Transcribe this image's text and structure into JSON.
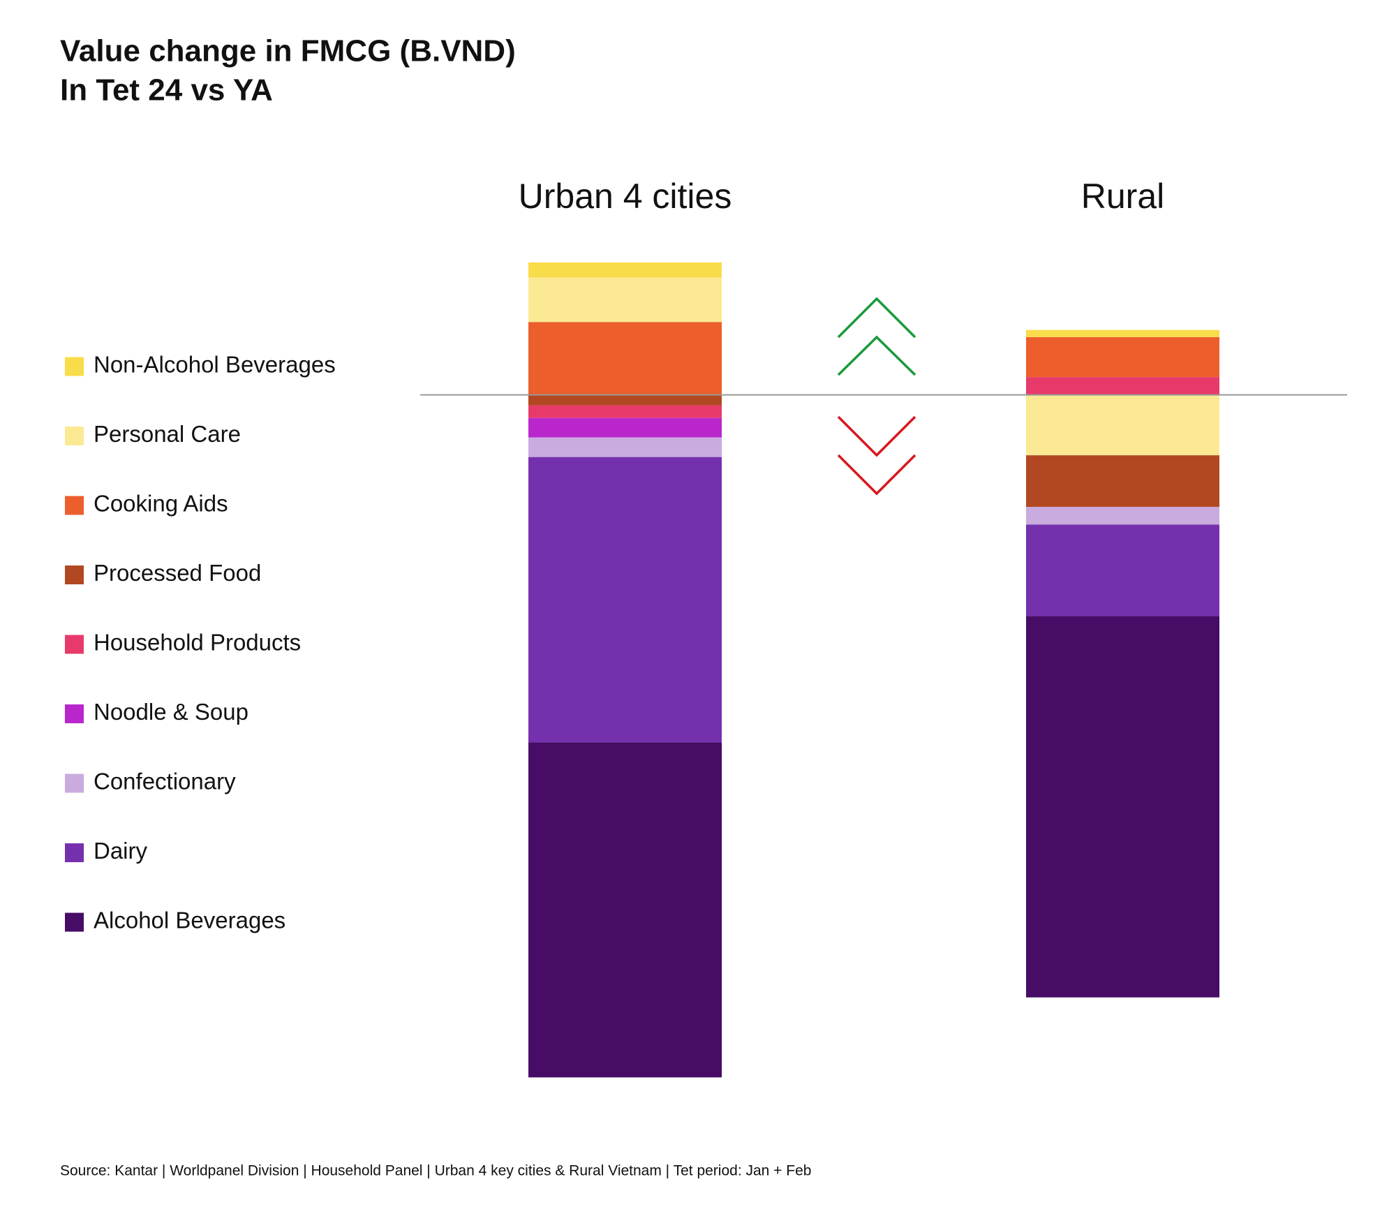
{
  "chart_data": {
    "type": "stacked_bar",
    "title": "Value change in FMCG (B.VND)",
    "subtitle": "In Tet 24 vs YA",
    "source": "Source: Kantar | Worldpanel Division | Household Panel | Urban 4 key cities & Rural Vietnam | Tet period: Jan + Feb",
    "categories": [
      "Urban 4 cities",
      "Rural"
    ],
    "series": [
      {
        "name": "Non-Alcohol Beverages",
        "color": "#f9dc4a",
        "values": [
          170,
          80
        ]
      },
      {
        "name": "Personal Care",
        "color": "#fbe993",
        "values": [
          500,
          -680
        ]
      },
      {
        "name": "Cooking Aids",
        "color": "#ec5f2c",
        "values": [
          820,
          450
        ]
      },
      {
        "name": "Processed Food",
        "color": "#b24822",
        "values": [
          -120,
          -580
        ]
      },
      {
        "name": "Household Products",
        "color": "#e83a6a",
        "values": [
          -140,
          200
        ]
      },
      {
        "name": "Noodle & Soup",
        "color": "#b927cc",
        "values": [
          -220,
          0
        ]
      },
      {
        "name": "Confectionary",
        "color": "#c9abdf",
        "values": [
          -220,
          -200
        ]
      },
      {
        "name": "Dairy",
        "color": "#7530ae",
        "values": [
          -3210,
          -1030
        ]
      },
      {
        "name": "Alcohol Beverages",
        "color": "#460c66",
        "values": [
          -3770,
          -4290
        ]
      }
    ],
    "ylim": [
      -8000,
      2000
    ]
  }
}
